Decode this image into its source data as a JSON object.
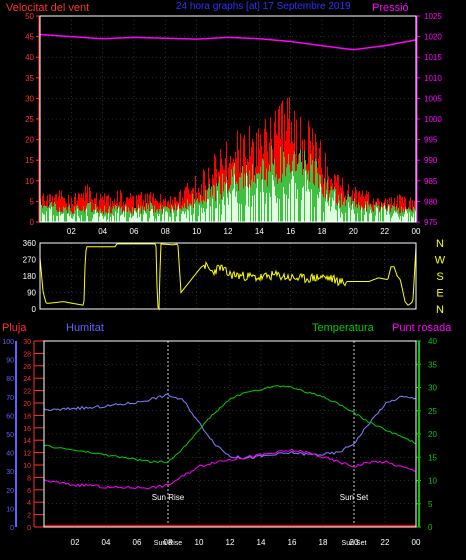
{
  "header": {
    "title": "24 hora graphs [at]  17 Septembre 2019",
    "left_label": "Velocitat del vent",
    "right_label": "Pressió"
  },
  "colors": {
    "background": "#000000",
    "frame": "#ffffff",
    "grid": "#555555",
    "wind_avg": "#40c040",
    "wind_gust": "#ff0000",
    "wind_low": "#e0ffe0",
    "pressure": "#ff00ff",
    "direction": "#ffff00",
    "rain": "#ff0000",
    "humidity": "#8080ff",
    "temperature": "#00cc00",
    "dewpoint": "#ff00ff",
    "red_axis": "#ff3030",
    "blue_axis": "#6060ff",
    "green_axis": "#00cc00"
  },
  "chart_data": [
    {
      "type": "line",
      "name": "wind-pressure",
      "series_colors": [
        "#ff0000",
        "#40c040",
        "#ff00ff"
      ],
      "x_ticks": [
        "02",
        "04",
        "06",
        "08",
        "10",
        "12",
        "14",
        "16",
        "18",
        "20",
        "22",
        "00"
      ],
      "x_tick_hours": [
        2,
        4,
        6,
        8,
        10,
        12,
        14,
        16,
        18,
        20,
        22,
        24
      ],
      "xlim": [
        0,
        24
      ],
      "ylim_left": [
        0,
        50
      ],
      "ylim_right": [
        975,
        1025
      ],
      "y_ticks_left": [
        0,
        5,
        10,
        15,
        20,
        25,
        30,
        35,
        40,
        45,
        50
      ],
      "y_ticks_right": [
        975,
        980,
        985,
        990,
        995,
        1000,
        1005,
        1010,
        1015,
        1020,
        1025
      ],
      "series": [
        {
          "axis": "left",
          "x": [
            0,
            1,
            2,
            3,
            4,
            5,
            6,
            7,
            8,
            9,
            9.5,
            10,
            10.5,
            11,
            11.5,
            12,
            12.5,
            13,
            13.5,
            14,
            14.5,
            15,
            15.5,
            16,
            16.5,
            17,
            17.5,
            18,
            18.5,
            19,
            20,
            21,
            22,
            23,
            24
          ],
          "y": [
            6,
            7,
            6,
            8,
            6,
            7,
            6,
            7,
            6,
            7,
            9,
            10,
            12,
            14,
            16,
            18,
            20,
            21,
            20,
            22,
            23,
            25,
            26,
            27,
            24,
            23,
            21,
            17,
            12,
            10,
            8,
            7,
            6,
            6,
            5
          ]
        },
        {
          "axis": "left",
          "x": [
            0,
            1,
            2,
            3,
            4,
            5,
            6,
            7,
            8,
            9,
            9.5,
            10,
            10.5,
            11,
            11.5,
            12,
            12.5,
            13,
            13.5,
            14,
            14.5,
            15,
            15.5,
            16,
            16.5,
            17,
            17.5,
            18,
            18.5,
            19,
            20,
            21,
            22,
            23,
            24
          ],
          "y": [
            4,
            4,
            3,
            4,
            3,
            4,
            3,
            4,
            3,
            4,
            5,
            6,
            7,
            8,
            9,
            10,
            12,
            13,
            12,
            13,
            14,
            15,
            16,
            17,
            15,
            14,
            13,
            10,
            8,
            6,
            5,
            4,
            4,
            3,
            3
          ]
        },
        {
          "axis": "right",
          "x": [
            0,
            2,
            4,
            6,
            8,
            10,
            12,
            14,
            16,
            18,
            20,
            22,
            24
          ],
          "y": [
            1020.5,
            1020,
            1019.5,
            1019.8,
            1019.6,
            1019.4,
            1019.8,
            1019.5,
            1018.8,
            1017.8,
            1016.8,
            1017.8,
            1019.2
          ]
        }
      ]
    },
    {
      "type": "line",
      "name": "wind-direction",
      "series_colors": [
        "#ffff00"
      ],
      "right_labels": [
        "N",
        "W",
        "S",
        "E",
        "N"
      ],
      "ylim": [
        0,
        360
      ],
      "y_ticks": [
        0,
        90,
        180,
        270,
        360
      ],
      "xlim": [
        0,
        24
      ],
      "series": [
        {
          "x": [
            0,
            0.2,
            0.4,
            1.5,
            2.8,
            2.9,
            3.0,
            4.8,
            4.9,
            6.0,
            7.4,
            7.5,
            7.6,
            7.7,
            8.5,
            8.8,
            9.0,
            10.3,
            10.5,
            11.0,
            11.5,
            12,
            13,
            14,
            15,
            16,
            17,
            18,
            18.6,
            19.5,
            19.6,
            20,
            21,
            21.6,
            22.2,
            22.4,
            22.6,
            22.8,
            23.0,
            23.3,
            23.5,
            23.8,
            24
          ],
          "y": [
            280,
            90,
            30,
            40,
            20,
            310,
            340,
            340,
            355,
            355,
            355,
            15,
            0,
            355,
            350,
            355,
            90,
            230,
            240,
            200,
            230,
            190,
            180,
            170,
            185,
            170,
            165,
            175,
            165,
            140,
            150,
            150,
            150,
            170,
            160,
            230,
            230,
            180,
            160,
            40,
            20,
            40,
            340
          ]
        }
      ]
    },
    {
      "type": "line",
      "name": "humidity-temperature",
      "series_colors": [
        "#ff0000",
        "#8080ff",
        "#00cc00",
        "#ff00ff"
      ],
      "legend": [
        "Pluja",
        "Humitat",
        "Temperatura",
        "Punt rosada"
      ],
      "annotations": [
        {
          "label": "Sun Rise",
          "hour": 8.0
        },
        {
          "label": "Sun Set",
          "hour": 20.0
        }
      ],
      "ylim_rain": [
        0,
        30
      ],
      "ylim_humidity": [
        0,
        100
      ],
      "ylim_temperature": [
        0,
        40
      ],
      "y_ticks_rain": [
        0,
        2,
        4,
        6,
        8,
        10,
        12,
        14,
        16,
        18,
        20,
        22,
        24,
        26,
        28,
        30
      ],
      "y_ticks_humidity": [
        0,
        10,
        20,
        30,
        40,
        50,
        60,
        70,
        80,
        90,
        100
      ],
      "y_ticks_temperature": [
        0,
        5,
        10,
        15,
        20,
        25,
        30,
        35,
        40
      ],
      "xlim": [
        0,
        24
      ],
      "series": [
        {
          "axis": "rain",
          "x": [
            0,
            24
          ],
          "y": [
            0,
            0
          ]
        },
        {
          "axis": "humidity",
          "x": [
            0,
            1,
            2,
            3,
            4,
            5,
            6,
            7,
            8,
            9,
            10,
            11,
            12,
            13,
            14,
            15,
            16,
            17,
            18,
            19,
            20,
            21,
            22,
            23,
            24
          ],
          "y": [
            63,
            63,
            64,
            64,
            65,
            66,
            67,
            69,
            71,
            68,
            56,
            45,
            38,
            37,
            38,
            39,
            40,
            39,
            39,
            40,
            45,
            56,
            66,
            70,
            69
          ]
        },
        {
          "axis": "temperature",
          "x": [
            0,
            1,
            2,
            3,
            4,
            5,
            6,
            7,
            8,
            9,
            10,
            11,
            12,
            13,
            14,
            15,
            16,
            17,
            18,
            19,
            20,
            21,
            22,
            23,
            24
          ],
          "y": [
            17.5,
            17,
            16.5,
            16,
            15.5,
            15,
            14.5,
            14,
            14,
            17,
            21,
            24.5,
            27.5,
            29,
            29.5,
            30.5,
            30,
            29,
            28,
            26.5,
            24.5,
            22.5,
            21,
            19.5,
            18
          ]
        },
        {
          "axis": "temperature",
          "x": [
            0,
            1,
            2,
            3,
            4,
            5,
            6,
            7,
            8,
            9,
            10,
            11,
            12,
            13,
            14,
            15,
            16,
            17,
            18,
            19,
            20,
            21,
            22,
            23,
            24
          ],
          "y": [
            10,
            9.5,
            9,
            9,
            8.5,
            8.5,
            8.5,
            8.5,
            9,
            11,
            13,
            14,
            14.5,
            15,
            15.5,
            16,
            16.5,
            16,
            15,
            14,
            13,
            14,
            14,
            13,
            12
          ]
        }
      ]
    }
  ]
}
